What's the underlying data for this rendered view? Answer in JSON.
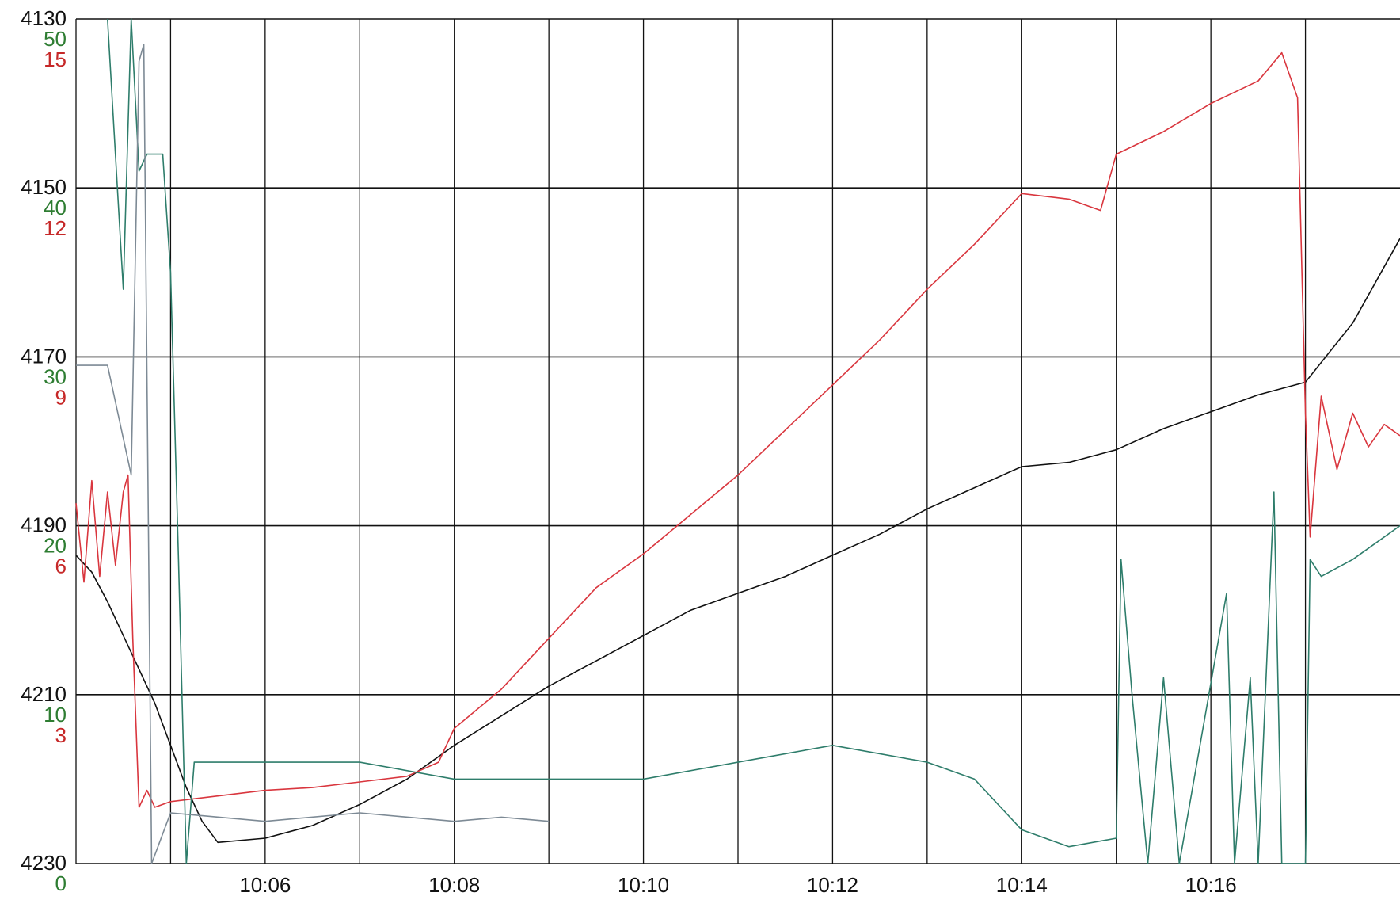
{
  "chart_data": {
    "type": "line",
    "title": "",
    "grid": true,
    "legend": "none",
    "x_axis": {
      "ticks": [
        "10:06",
        "10:08",
        "10:10",
        "10:12",
        "10:14",
        "10:16"
      ],
      "range": [
        "10:04:00",
        "10:18:00"
      ]
    },
    "y_axes": [
      {
        "id": "depth",
        "color": "#111111",
        "inverted": true,
        "range": [
          4130,
          4230
        ],
        "ticks": [
          "4130",
          "4150",
          "4170",
          "4190",
          "4210",
          "4230"
        ]
      },
      {
        "id": "green_scale",
        "color": "#2e7d32",
        "range": [
          50,
          0
        ],
        "ticks": [
          "50",
          "40",
          "30",
          "20",
          "10",
          "0"
        ]
      },
      {
        "id": "red_scale",
        "color": "#c62828",
        "range": [
          15,
          0
        ],
        "ticks": [
          "15",
          "12",
          "9",
          "6",
          "3",
          ""
        ]
      }
    ],
    "series": [
      {
        "axis": "depth",
        "color": "#111111",
        "points": [
          [
            "10:04:00",
            4193.5
          ],
          [
            "10:04:10",
            4195.5
          ],
          [
            "10:04:20",
            4199
          ],
          [
            "10:04:30",
            4203
          ],
          [
            "10:04:40",
            4207
          ],
          [
            "10:04:50",
            4211
          ],
          [
            "10:05:00",
            4216
          ],
          [
            "10:05:10",
            4221
          ],
          [
            "10:05:20",
            4225
          ],
          [
            "10:05:30",
            4227.5
          ],
          [
            "10:06:00",
            4227
          ],
          [
            "10:06:30",
            4225.5
          ],
          [
            "10:07:00",
            4223
          ],
          [
            "10:07:30",
            4220
          ],
          [
            "10:08:00",
            4216
          ],
          [
            "10:08:30",
            4212.5
          ],
          [
            "10:09:00",
            4209
          ],
          [
            "10:09:30",
            4206
          ],
          [
            "10:10:00",
            4203
          ],
          [
            "10:10:30",
            4200
          ],
          [
            "10:11:00",
            4198
          ],
          [
            "10:11:30",
            4196
          ],
          [
            "10:12:00",
            4193.5
          ],
          [
            "10:12:30",
            4191
          ],
          [
            "10:13:00",
            4188
          ],
          [
            "10:13:30",
            4185.5
          ],
          [
            "10:14:00",
            4183
          ],
          [
            "10:14:30",
            4182.5
          ],
          [
            "10:15:00",
            4181
          ],
          [
            "10:15:30",
            4178.5
          ],
          [
            "10:16:00",
            4176.5
          ],
          [
            "10:16:30",
            4174.5
          ],
          [
            "10:17:00",
            4173
          ],
          [
            "10:17:30",
            4166
          ],
          [
            "10:18:00",
            4156
          ]
        ]
      },
      {
        "axis": "red_scale",
        "color": "#d9363e",
        "points": [
          [
            "10:04:00",
            6.4
          ],
          [
            "10:04:05",
            5.0
          ],
          [
            "10:04:10",
            6.8
          ],
          [
            "10:04:15",
            5.1
          ],
          [
            "10:04:20",
            6.6
          ],
          [
            "10:04:25",
            5.3
          ],
          [
            "10:04:30",
            6.6
          ],
          [
            "10:04:33",
            6.9
          ],
          [
            "10:04:36",
            4.0
          ],
          [
            "10:04:40",
            1.0
          ],
          [
            "10:04:45",
            1.3
          ],
          [
            "10:04:50",
            1.0
          ],
          [
            "10:05:00",
            1.1
          ],
          [
            "10:05:30",
            1.2
          ],
          [
            "10:06:00",
            1.3
          ],
          [
            "10:06:30",
            1.35
          ],
          [
            "10:07:00",
            1.45
          ],
          [
            "10:07:30",
            1.55
          ],
          [
            "10:07:50",
            1.8
          ],
          [
            "10:08:00",
            2.4
          ],
          [
            "10:08:30",
            3.1
          ],
          [
            "10:09:00",
            4.0
          ],
          [
            "10:09:30",
            4.9
          ],
          [
            "10:10:00",
            5.5
          ],
          [
            "10:10:30",
            6.2
          ],
          [
            "10:11:00",
            6.9
          ],
          [
            "10:11:30",
            7.7
          ],
          [
            "10:12:00",
            8.5
          ],
          [
            "10:12:30",
            9.3
          ],
          [
            "10:13:00",
            10.2
          ],
          [
            "10:13:30",
            11.0
          ],
          [
            "10:14:00",
            11.9
          ],
          [
            "10:14:30",
            11.8
          ],
          [
            "10:14:50",
            11.6
          ],
          [
            "10:15:00",
            12.6
          ],
          [
            "10:15:30",
            13.0
          ],
          [
            "10:16:00",
            13.5
          ],
          [
            "10:16:30",
            13.9
          ],
          [
            "10:16:45",
            14.4
          ],
          [
            "10:16:55",
            13.6
          ],
          [
            "10:17:00",
            8.0
          ],
          [
            "10:17:03",
            5.8
          ],
          [
            "10:17:10",
            8.3
          ],
          [
            "10:17:20",
            7.0
          ],
          [
            "10:17:30",
            8.0
          ],
          [
            "10:17:40",
            7.4
          ],
          [
            "10:17:50",
            7.8
          ],
          [
            "10:18:00",
            7.6
          ]
        ]
      },
      {
        "axis": "green_scale",
        "color": "#2e7d6b",
        "points": [
          [
            "10:04:20",
            50
          ],
          [
            "10:04:30",
            34
          ],
          [
            "10:04:35",
            50
          ],
          [
            "10:04:40",
            41
          ],
          [
            "10:04:45",
            42
          ],
          [
            "10:04:55",
            42
          ],
          [
            "10:05:00",
            35
          ],
          [
            "10:05:05",
            18
          ],
          [
            "10:05:10",
            0
          ],
          [
            "10:05:15",
            6
          ],
          [
            "10:06:00",
            6
          ],
          [
            "10:07:00",
            6
          ],
          [
            "10:08:00",
            5
          ],
          [
            "10:09:00",
            5
          ],
          [
            "10:10:00",
            5
          ],
          [
            "10:11:00",
            6
          ],
          [
            "10:12:00",
            7
          ],
          [
            "10:13:00",
            6
          ],
          [
            "10:13:30",
            5
          ],
          [
            "10:14:00",
            2
          ],
          [
            "10:14:30",
            1
          ],
          [
            "10:15:00",
            1.5
          ],
          [
            "10:15:03",
            18
          ],
          [
            "10:15:10",
            10
          ],
          [
            "10:15:20",
            0
          ],
          [
            "10:15:30",
            11
          ],
          [
            "10:15:40",
            0
          ],
          [
            "10:16:10",
            16
          ],
          [
            "10:16:15",
            0
          ],
          [
            "10:16:25",
            11
          ],
          [
            "10:16:30",
            0
          ],
          [
            "10:16:40",
            22
          ],
          [
            "10:16:45",
            0
          ],
          [
            "10:17:00",
            0
          ],
          [
            "10:17:03",
            18
          ],
          [
            "10:17:10",
            17
          ],
          [
            "10:17:30",
            18
          ],
          [
            "10:18:00",
            20
          ]
        ]
      },
      {
        "axis": "depth",
        "color": "#7d8a95",
        "points": [
          [
            "10:04:00",
            4171
          ],
          [
            "10:04:20",
            4171
          ],
          [
            "10:04:35",
            4184
          ],
          [
            "10:04:40",
            4135
          ],
          [
            "10:04:43",
            4133
          ],
          [
            "10:04:48",
            4230
          ],
          [
            "10:05:00",
            4224
          ],
          [
            "10:06:00",
            4225
          ],
          [
            "10:07:00",
            4224
          ],
          [
            "10:08:00",
            4225
          ],
          [
            "10:08:30",
            4224.5
          ],
          [
            "10:09:00",
            4225
          ]
        ]
      }
    ]
  }
}
